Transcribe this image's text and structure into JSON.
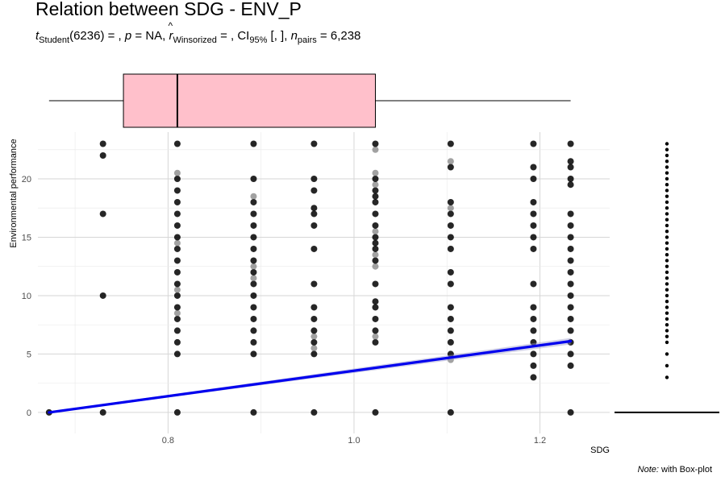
{
  "title": "Relation between SDG - ENV_P",
  "subtitle": {
    "t_label": "t",
    "t_sub": "Student",
    "t_rest": "(6236) = , ",
    "p_label": "p",
    "p_rest": " = NA, ",
    "r_label": "r",
    "r_sub": "Winsorized",
    "r_rest": " = , CI",
    "ci_sub": "95%",
    "ci_rest": " [, ], ",
    "n_label": "n",
    "n_sub": "pairs",
    "n_rest": " = 6,238"
  },
  "caption": {
    "note_label": "Note:",
    "note_text": " with Box-plot"
  },
  "chart_data": {
    "type": "scatter",
    "title": "Relation between SDG - ENV_P",
    "xlabel": "SDG",
    "ylabel": "Environmental performance",
    "xlim": [
      0.66,
      1.275
    ],
    "ylim": [
      -1.8,
      24
    ],
    "x_ticks": [
      0.8,
      1.0,
      1.2
    ],
    "x_tick_labels": [
      "0.8",
      "1.0",
      "1.2"
    ],
    "y_ticks": [
      0,
      5,
      10,
      15,
      20
    ],
    "y_tick_labels": [
      "0",
      "5",
      "10",
      "15",
      "20"
    ],
    "grid": true,
    "point_columns": [
      {
        "x": 0.672,
        "y": [
          0
        ]
      },
      {
        "x": 0.73,
        "y": [
          0,
          10,
          17,
          22,
          23
        ]
      },
      {
        "x": 0.81,
        "y": [
          0,
          5,
          6,
          7,
          8,
          8.5,
          9,
          10,
          10.5,
          11,
          12,
          13,
          14,
          14.5,
          15,
          16,
          17,
          18,
          19,
          20,
          20.5,
          23
        ]
      },
      {
        "x": 0.892,
        "y": [
          0,
          5,
          6,
          7,
          8,
          9,
          10,
          11,
          11.5,
          12,
          12.5,
          13,
          14,
          15,
          16,
          17,
          18,
          18.5,
          20,
          23
        ]
      },
      {
        "x": 0.957,
        "y": [
          0,
          5,
          5.5,
          6,
          6.5,
          7,
          8,
          9,
          11,
          14,
          16,
          17,
          17.5,
          19,
          20,
          23
        ]
      },
      {
        "x": 1.023,
        "y": [
          0,
          6,
          6.5,
          7,
          8,
          9,
          9.5,
          11,
          12.5,
          13,
          13.5,
          14,
          14.5,
          15,
          15.5,
          16,
          17,
          18,
          18.5,
          19,
          19.5,
          20,
          20.5,
          22.5,
          23
        ]
      },
      {
        "x": 1.104,
        "y": [
          0,
          4.5,
          5,
          6,
          7,
          8,
          9,
          11,
          12,
          14,
          15,
          16,
          17,
          17.5,
          18,
          21,
          21.5,
          23
        ]
      },
      {
        "x": 1.193,
        "y": [
          3,
          4,
          5,
          6,
          7,
          8,
          9,
          11,
          14,
          15,
          16,
          17,
          18,
          20,
          21,
          23
        ]
      },
      {
        "x": 1.233,
        "y": [
          0,
          4,
          5,
          6,
          7,
          8,
          9,
          10,
          11,
          12,
          13,
          14,
          15,
          16,
          17,
          19.5,
          20,
          21,
          21.5,
          23
        ]
      }
    ],
    "regression_line": {
      "x": [
        0.672,
        1.233
      ],
      "y": [
        0,
        6.1
      ],
      "color": "#0000ee"
    },
    "boxplot_x": {
      "whisker_low": 0.672,
      "q1": 0.752,
      "median": 0.81,
      "q3": 1.023,
      "whisker_high": 1.233,
      "fill": "#ffc0cb"
    },
    "marginal_y": {
      "dots": [
        0,
        3,
        4,
        5,
        6,
        6.5,
        7,
        7.5,
        8,
        8.5,
        9,
        9.5,
        10,
        10.5,
        11,
        11.5,
        12,
        12.5,
        13,
        13.5,
        14,
        14.5,
        15,
        15.5,
        16,
        16.5,
        17,
        17.5,
        18,
        18.5,
        19,
        19.5,
        20,
        20.5,
        21,
        21.5,
        22,
        22.5,
        23
      ],
      "box_line_value": 0
    }
  }
}
